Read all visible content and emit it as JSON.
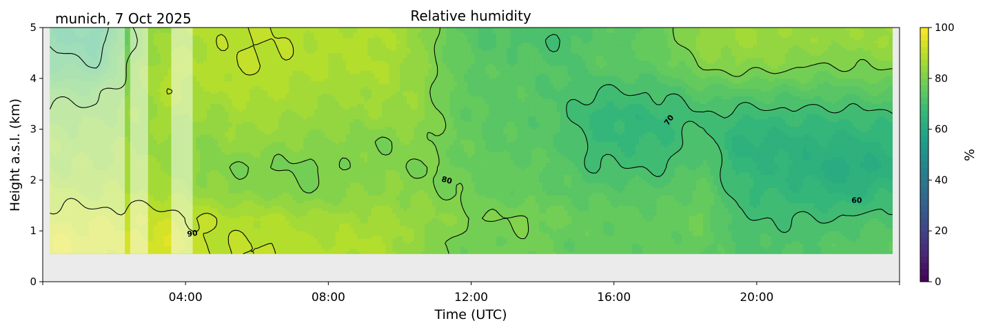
{
  "chart_data": {
    "type": "heatmap",
    "subtype": "filled-contour",
    "title": "Relative humidity",
    "subtitle": "munich, 7 Oct 2025",
    "xlabel": "Time (UTC)",
    "ylabel": "Height a.s.l. (km)",
    "xlim_hours": [
      0,
      24
    ],
    "ylim": [
      0,
      5
    ],
    "xticks": [
      "04:00",
      "08:00",
      "12:00",
      "16:00",
      "20:00"
    ],
    "xtick_hours": [
      4,
      8,
      12,
      16,
      20
    ],
    "yticks": [
      "0",
      "1",
      "2",
      "3",
      "4",
      "5"
    ],
    "colorbar": {
      "label": "%",
      "range": [
        0,
        100
      ],
      "ticks": [
        "0",
        "20",
        "40",
        "60",
        "80",
        "100"
      ],
      "colormap": "viridis",
      "step": 2.5
    },
    "data_extent_hours": [
      0.2,
      23.8
    ],
    "data_min_height_km": 0.55,
    "masked_time_ranges_hours": [
      [
        0.2,
        2.3
      ],
      [
        2.45,
        2.95
      ],
      [
        3.6,
        4.2
      ]
    ],
    "contour_levels": [
      60,
      70,
      80,
      90
    ],
    "contour_labels": [
      "90",
      "80",
      "70",
      "60"
    ],
    "grid_times_hours": [
      0.5,
      1.5,
      2.5,
      3.5,
      4.5,
      5.5,
      6.5,
      7.5,
      8.5,
      9.5,
      10.5,
      11.5,
      12.5,
      13.5,
      14.5,
      15.5,
      16.5,
      17.5,
      18.5,
      19.5,
      20.5,
      21.5,
      22.5,
      23.5
    ],
    "grid_heights_km": [
      0.75,
      1.25,
      1.75,
      2.25,
      2.75,
      3.25,
      3.75,
      4.25,
      4.75
    ],
    "rh_values": [
      [
        95,
        92,
        88,
        85,
        84,
        82,
        78,
        72,
        68
      ],
      [
        94,
        92,
        87,
        85,
        84,
        82,
        78,
        70,
        66
      ],
      [
        93,
        92,
        88,
        86,
        85,
        84,
        83,
        82,
        80
      ],
      [
        95,
        92,
        87,
        85,
        84,
        86,
        89,
        88,
        86
      ],
      [
        90,
        90,
        84,
        82,
        82,
        84,
        87,
        88,
        88
      ],
      [
        90,
        88,
        82,
        80,
        84,
        86,
        88,
        90,
        90
      ],
      [
        90,
        88,
        82,
        80,
        83,
        86,
        88,
        90,
        90
      ],
      [
        88,
        86,
        80,
        79,
        82,
        84,
        86,
        88,
        88
      ],
      [
        88,
        86,
        82,
        81,
        82,
        84,
        86,
        88,
        88
      ],
      [
        88,
        86,
        83,
        82,
        80,
        84,
        86,
        88,
        88
      ],
      [
        83,
        84,
        82,
        80,
        82,
        84,
        84,
        84,
        84
      ],
      [
        79,
        82,
        80,
        78,
        78,
        77,
        76,
        77,
        76
      ],
      [
        78,
        80,
        76,
        76,
        75,
        74,
        74,
        74,
        72
      ],
      [
        79,
        80,
        76,
        76,
        74,
        74,
        74,
        74,
        72
      ],
      [
        76,
        78,
        75,
        74,
        73,
        72,
        72,
        72,
        70
      ],
      [
        76,
        76,
        74,
        70,
        68,
        66,
        70,
        74,
        74
      ],
      [
        76,
        76,
        74,
        70,
        67,
        66,
        70,
        74,
        74
      ],
      [
        76,
        76,
        74,
        70,
        68,
        67,
        71,
        76,
        78
      ],
      [
        76,
        78,
        76,
        74,
        72,
        70,
        74,
        81,
        84
      ],
      [
        72,
        70,
        68,
        66,
        64,
        68,
        74,
        82,
        85
      ],
      [
        72,
        70,
        67,
        65,
        64,
        68,
        74,
        82,
        85
      ],
      [
        73,
        70,
        66,
        63,
        64,
        68,
        74,
        80,
        84
      ],
      [
        74,
        70,
        64,
        61,
        64,
        68,
        74,
        80,
        84
      ],
      [
        75,
        72,
        67,
        63,
        65,
        69,
        75,
        81,
        85
      ]
    ]
  }
}
